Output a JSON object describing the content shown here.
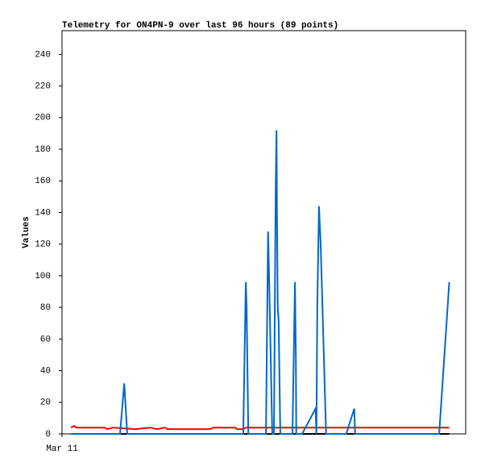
{
  "chart_data": {
    "type": "line",
    "title": "Telemetry for ON4PN-9 over last 96 hours (89 points)",
    "y_label": "Values",
    "xlim": [
      0,
      96
    ],
    "xticks": [
      {
        "value": 0,
        "label": "Mar 11"
      }
    ],
    "ylim": [
      0,
      255
    ],
    "yticks": [
      0,
      20,
      40,
      60,
      80,
      100,
      120,
      140,
      160,
      180,
      200,
      220,
      240
    ],
    "grid": false,
    "series": [
      {
        "color": "#000000",
        "x": [
          2.1,
          92.1
        ],
        "values": [
          0,
          0
        ]
      },
      {
        "color": "#ff0000",
        "x": [
          2.1,
          2.9,
          3.4,
          10.2,
          10.7,
          12.1,
          17.4,
          20.9,
          22.6,
          24.5,
          25.1,
          35.1,
          36.0,
          41.2,
          41.6,
          43.1,
          43.7,
          92.1
        ],
        "values": [
          4,
          5,
          4,
          4,
          3,
          4,
          3,
          4,
          3,
          4,
          3,
          3,
          4,
          4,
          3,
          3,
          4,
          4
        ]
      },
      {
        "color": "#0066cc",
        "x": [
          2.1,
          13.8,
          14.8,
          15.5,
          43.1,
          43.7,
          43.9,
          44.3,
          48.5,
          49.0,
          49.2,
          50.0,
          50.4,
          50.8,
          51.0,
          51.1,
          51.3,
          51.5,
          51.9,
          54.8,
          55.4,
          55.6,
          55.7,
          57.1,
          60.3,
          60.5,
          60.7,
          61.1,
          61.5,
          62.8,
          67.6,
          69.5,
          69.7,
          89.7,
          92.1
        ],
        "values": [
          0,
          0,
          32,
          0,
          0,
          96,
          80,
          0,
          0,
          128,
          104,
          0,
          0,
          152,
          192,
          144,
          80,
          72,
          0,
          0,
          96,
          48,
          0,
          0,
          16,
          0,
          80,
          144,
          120,
          0,
          0,
          16,
          0,
          0,
          96
        ]
      }
    ]
  }
}
